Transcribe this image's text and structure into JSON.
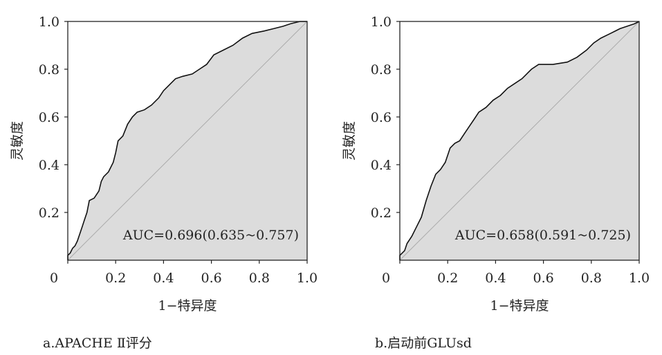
{
  "chart_data": [
    {
      "type": "area",
      "caption": "a.APACHE Ⅱ评分",
      "xlabel": "1−特异度",
      "ylabel": "灵敏度",
      "annotation": "AUC=0.696(0.635~0.757)",
      "xlim": [
        0,
        1
      ],
      "ylim": [
        0,
        1
      ],
      "x_ticks": [
        "0",
        "0.2",
        "0.4",
        "0.6",
        "0.8",
        "1.0"
      ],
      "y_ticks": [
        "0.2",
        "0.4",
        "0.6",
        "0.8",
        "1.0"
      ],
      "reference_line": true,
      "roc": [
        [
          0,
          0
        ],
        [
          0,
          0.02
        ],
        [
          0.01,
          0.03
        ],
        [
          0.02,
          0.05
        ],
        [
          0.03,
          0.06
        ],
        [
          0.04,
          0.08
        ],
        [
          0.05,
          0.11
        ],
        [
          0.06,
          0.14
        ],
        [
          0.07,
          0.17
        ],
        [
          0.08,
          0.2
        ],
        [
          0.09,
          0.25
        ],
        [
          0.11,
          0.26
        ],
        [
          0.13,
          0.29
        ],
        [
          0.14,
          0.33
        ],
        [
          0.15,
          0.35
        ],
        [
          0.17,
          0.37
        ],
        [
          0.19,
          0.41
        ],
        [
          0.2,
          0.45
        ],
        [
          0.21,
          0.5
        ],
        [
          0.23,
          0.52
        ],
        [
          0.25,
          0.57
        ],
        [
          0.27,
          0.6
        ],
        [
          0.29,
          0.62
        ],
        [
          0.32,
          0.63
        ],
        [
          0.35,
          0.65
        ],
        [
          0.38,
          0.68
        ],
        [
          0.4,
          0.71
        ],
        [
          0.43,
          0.74
        ],
        [
          0.45,
          0.76
        ],
        [
          0.48,
          0.77
        ],
        [
          0.52,
          0.78
        ],
        [
          0.55,
          0.8
        ],
        [
          0.58,
          0.82
        ],
        [
          0.61,
          0.86
        ],
        [
          0.65,
          0.88
        ],
        [
          0.69,
          0.9
        ],
        [
          0.73,
          0.93
        ],
        [
          0.77,
          0.95
        ],
        [
          0.82,
          0.96
        ],
        [
          0.86,
          0.97
        ],
        [
          0.9,
          0.98
        ],
        [
          0.93,
          0.99
        ],
        [
          0.97,
          1.0
        ],
        [
          1.0,
          1.0
        ]
      ]
    },
    {
      "type": "area",
      "caption": "b.启动前GLUsd",
      "xlabel": "1−特异度",
      "ylabel": "灵敏度",
      "annotation": "AUC=0.658(0.591~0.725)",
      "xlim": [
        0,
        1
      ],
      "ylim": [
        0,
        1
      ],
      "x_ticks": [
        "0",
        "0.2",
        "0.4",
        "0.6",
        "0.8",
        "1.0"
      ],
      "y_ticks": [
        "0.2",
        "0.4",
        "0.6",
        "0.8",
        "1.0"
      ],
      "reference_line": true,
      "roc": [
        [
          0,
          0
        ],
        [
          0,
          0.02
        ],
        [
          0.02,
          0.04
        ],
        [
          0.03,
          0.07
        ],
        [
          0.05,
          0.1
        ],
        [
          0.07,
          0.14
        ],
        [
          0.09,
          0.18
        ],
        [
          0.11,
          0.25
        ],
        [
          0.13,
          0.31
        ],
        [
          0.15,
          0.36
        ],
        [
          0.17,
          0.38
        ],
        [
          0.19,
          0.41
        ],
        [
          0.21,
          0.47
        ],
        [
          0.23,
          0.49
        ],
        [
          0.25,
          0.5
        ],
        [
          0.27,
          0.53
        ],
        [
          0.29,
          0.56
        ],
        [
          0.31,
          0.59
        ],
        [
          0.33,
          0.62
        ],
        [
          0.36,
          0.64
        ],
        [
          0.39,
          0.67
        ],
        [
          0.42,
          0.69
        ],
        [
          0.45,
          0.72
        ],
        [
          0.48,
          0.74
        ],
        [
          0.51,
          0.76
        ],
        [
          0.53,
          0.78
        ],
        [
          0.55,
          0.8
        ],
        [
          0.58,
          0.82
        ],
        [
          0.64,
          0.82
        ],
        [
          0.7,
          0.83
        ],
        [
          0.74,
          0.85
        ],
        [
          0.78,
          0.88
        ],
        [
          0.81,
          0.91
        ],
        [
          0.84,
          0.93
        ],
        [
          0.88,
          0.95
        ],
        [
          0.92,
          0.97
        ],
        [
          0.95,
          0.98
        ],
        [
          0.98,
          0.99
        ],
        [
          1.0,
          1.0
        ]
      ]
    }
  ]
}
